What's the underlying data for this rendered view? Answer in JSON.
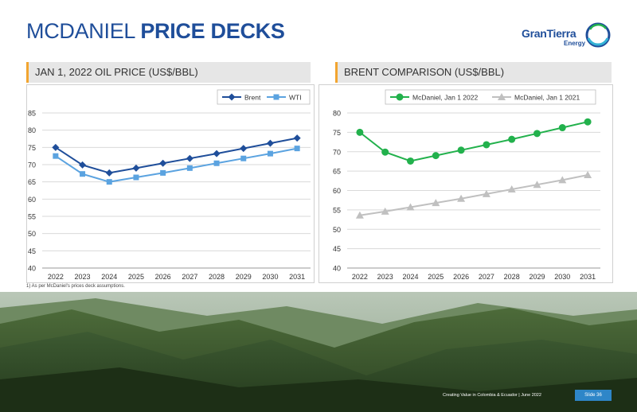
{
  "page": {
    "title_regular": "MCDANIEL ",
    "title_bold": "PRICE DECKS",
    "logo_main": "GranTierra",
    "logo_sub": "Energy",
    "footnote": "1)  As per McDaniel's prices deck assumptions.",
    "footer": "Creating Value in Colombia & Ecuador  |  June 2022",
    "slide": "Slide 36",
    "brand_color": "#1f4e9a",
    "accent_color": "#f2a530"
  },
  "chart_data": [
    {
      "type": "line",
      "title": "JAN 1, 2022 OIL PRICE  (US$/BBL)",
      "categories": [
        "2022",
        "2023",
        "2024",
        "2025",
        "2026",
        "2027",
        "2028",
        "2029",
        "2030",
        "2031"
      ],
      "series": [
        {
          "name": "Brent",
          "values": [
            75.0,
            69.9,
            67.6,
            69.0,
            70.4,
            71.8,
            73.2,
            74.7,
            76.2,
            77.7
          ],
          "color": "#1f4e9a",
          "marker": "diamond"
        },
        {
          "name": "WTI",
          "values": [
            72.5,
            67.3,
            65.0,
            66.3,
            67.6,
            69.0,
            70.4,
            71.8,
            73.2,
            74.7
          ],
          "color": "#5ba3e0",
          "marker": "square"
        }
      ],
      "ylim": [
        40,
        85
      ],
      "yticks": [
        "85",
        "80",
        "75",
        "70",
        "65",
        "60",
        "55",
        "50",
        "45",
        "40"
      ],
      "grid": true,
      "legend": "top-right"
    },
    {
      "type": "line",
      "title": "BRENT COMPARISON (US$/BBL)",
      "categories": [
        "2022",
        "2023",
        "2024",
        "2025",
        "2026",
        "2027",
        "2028",
        "2029",
        "2030",
        "2031"
      ],
      "series": [
        {
          "name": "McDaniel, Jan 1 2022",
          "values": [
            75.0,
            69.9,
            67.6,
            69.0,
            70.4,
            71.8,
            73.2,
            74.7,
            76.2,
            77.7
          ],
          "color": "#22b14c",
          "marker": "circle"
        },
        {
          "name": "McDaniel, Jan 1 2021",
          "values": [
            53.6,
            54.6,
            55.7,
            56.8,
            57.9,
            59.1,
            60.3,
            61.5,
            62.7,
            64.0
          ],
          "color": "#c0c0c0",
          "marker": "triangle"
        }
      ],
      "ylim": [
        40,
        80
      ],
      "yticks": [
        "80",
        "75",
        "70",
        "65",
        "60",
        "55",
        "50",
        "45",
        "40"
      ],
      "grid": true,
      "legend": "top-right"
    }
  ]
}
